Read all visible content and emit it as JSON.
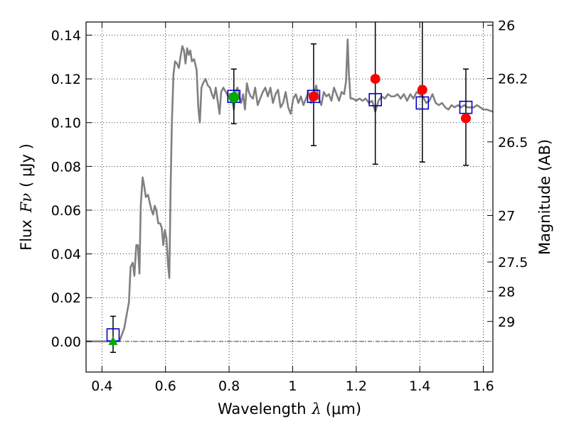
{
  "chart_data": {
    "type": "line",
    "xlabel": {
      "text": "Wavelength",
      "symbol": "λ",
      "unit": "(μm)"
    },
    "ylabel": {
      "text": "Flux",
      "symbol": "Fν",
      "unit": "( μJy )"
    },
    "y2label": "Magnitude (AB)",
    "xlim": [
      0.35,
      1.63
    ],
    "ylim": [
      -0.014,
      0.146
    ],
    "grid": true,
    "x_ticks": [
      {
        "value": 0.4,
        "label": "0.4"
      },
      {
        "value": 0.6,
        "label": "0.6"
      },
      {
        "value": 0.8,
        "label": "0.8"
      },
      {
        "value": 1.0,
        "label": "1"
      },
      {
        "value": 1.2,
        "label": "1.2"
      },
      {
        "value": 1.4,
        "label": "1.4"
      },
      {
        "value": 1.6,
        "label": "1.6"
      }
    ],
    "y_ticks": [
      {
        "value": 0.0,
        "label": "0.00"
      },
      {
        "value": 0.02,
        "label": "0.02"
      },
      {
        "value": 0.04,
        "label": "0.04"
      },
      {
        "value": 0.06,
        "label": "0.06"
      },
      {
        "value": 0.08,
        "label": "0.08"
      },
      {
        "value": 0.1,
        "label": "0.10"
      },
      {
        "value": 0.12,
        "label": "0.12"
      },
      {
        "value": 0.14,
        "label": "0.14"
      }
    ],
    "y2_ticks": [
      {
        "value": 26,
        "label": "26"
      },
      {
        "value": 26.2,
        "label": "26.2"
      },
      {
        "value": 26.5,
        "label": "26.5"
      },
      {
        "value": 27,
        "label": "27"
      },
      {
        "value": 27.5,
        "label": "27.5"
      },
      {
        "value": 28,
        "label": "28"
      },
      {
        "value": 29,
        "label": "29"
      }
    ],
    "zero_line": 0,
    "colors": {
      "spectrum": "#808080",
      "model_box": "#0000cc",
      "observed": "#ff0000",
      "green": "#00aa00",
      "error_bar": "#000000"
    },
    "series": [
      {
        "kind": "spectrum",
        "points": [
          [
            0.35,
            0.0
          ],
          [
            0.43,
            0.0
          ],
          [
            0.455,
            0.0
          ],
          [
            0.47,
            0.006
          ],
          [
            0.485,
            0.018
          ],
          [
            0.49,
            0.034
          ],
          [
            0.497,
            0.036
          ],
          [
            0.502,
            0.03
          ],
          [
            0.508,
            0.044
          ],
          [
            0.513,
            0.044
          ],
          [
            0.518,
            0.031
          ],
          [
            0.522,
            0.062
          ],
          [
            0.528,
            0.075
          ],
          [
            0.533,
            0.071
          ],
          [
            0.538,
            0.066
          ],
          [
            0.545,
            0.067
          ],
          [
            0.551,
            0.063
          ],
          [
            0.556,
            0.06
          ],
          [
            0.561,
            0.058
          ],
          [
            0.566,
            0.062
          ],
          [
            0.571,
            0.06
          ],
          [
            0.577,
            0.054
          ],
          [
            0.583,
            0.054
          ],
          [
            0.588,
            0.052
          ],
          [
            0.593,
            0.044
          ],
          [
            0.598,
            0.051
          ],
          [
            0.603,
            0.047
          ],
          [
            0.608,
            0.035
          ],
          [
            0.612,
            0.029
          ],
          [
            0.616,
            0.07
          ],
          [
            0.62,
            0.1
          ],
          [
            0.625,
            0.122
          ],
          [
            0.63,
            0.128
          ],
          [
            0.636,
            0.127
          ],
          [
            0.642,
            0.125
          ],
          [
            0.647,
            0.13
          ],
          [
            0.653,
            0.135
          ],
          [
            0.658,
            0.133
          ],
          [
            0.663,
            0.127
          ],
          [
            0.668,
            0.134
          ],
          [
            0.673,
            0.131
          ],
          [
            0.678,
            0.133
          ],
          [
            0.683,
            0.128
          ],
          [
            0.69,
            0.129
          ],
          [
            0.698,
            0.124
          ],
          [
            0.703,
            0.107
          ],
          [
            0.708,
            0.1
          ],
          [
            0.713,
            0.116
          ],
          [
            0.718,
            0.118
          ],
          [
            0.726,
            0.12
          ],
          [
            0.733,
            0.117
          ],
          [
            0.74,
            0.116
          ],
          [
            0.746,
            0.113
          ],
          [
            0.752,
            0.111
          ],
          [
            0.758,
            0.116
          ],
          [
            0.764,
            0.11
          ],
          [
            0.77,
            0.104
          ],
          [
            0.775,
            0.114
          ],
          [
            0.782,
            0.116
          ],
          [
            0.79,
            0.114
          ],
          [
            0.797,
            0.112
          ],
          [
            0.804,
            0.113
          ],
          [
            0.81,
            0.11
          ],
          [
            0.815,
            0.106
          ],
          [
            0.82,
            0.114
          ],
          [
            0.826,
            0.116
          ],
          [
            0.832,
            0.112
          ],
          [
            0.838,
            0.109
          ],
          [
            0.844,
            0.113
          ],
          [
            0.85,
            0.106
          ],
          [
            0.856,
            0.118
          ],
          [
            0.862,
            0.114
          ],
          [
            0.868,
            0.112
          ],
          [
            0.875,
            0.111
          ],
          [
            0.882,
            0.116
          ],
          [
            0.89,
            0.108
          ],
          [
            0.898,
            0.111
          ],
          [
            0.906,
            0.114
          ],
          [
            0.914,
            0.116
          ],
          [
            0.922,
            0.112
          ],
          [
            0.93,
            0.116
          ],
          [
            0.938,
            0.109
          ],
          [
            0.946,
            0.113
          ],
          [
            0.954,
            0.115
          ],
          [
            0.962,
            0.107
          ],
          [
            0.97,
            0.109
          ],
          [
            0.978,
            0.114
          ],
          [
            0.986,
            0.107
          ],
          [
            0.994,
            0.104
          ],
          [
            1.002,
            0.111
          ],
          [
            1.01,
            0.113
          ],
          [
            1.018,
            0.109
          ],
          [
            1.026,
            0.112
          ],
          [
            1.034,
            0.108
          ],
          [
            1.042,
            0.111
          ],
          [
            1.05,
            0.114
          ],
          [
            1.058,
            0.109
          ],
          [
            1.066,
            0.112
          ],
          [
            1.074,
            0.117
          ],
          [
            1.082,
            0.111
          ],
          [
            1.09,
            0.108
          ],
          [
            1.098,
            0.114
          ],
          [
            1.106,
            0.112
          ],
          [
            1.114,
            0.113
          ],
          [
            1.122,
            0.11
          ],
          [
            1.13,
            0.116
          ],
          [
            1.138,
            0.113
          ],
          [
            1.146,
            0.11
          ],
          [
            1.154,
            0.114
          ],
          [
            1.162,
            0.113
          ],
          [
            1.168,
            0.119
          ],
          [
            1.173,
            0.138
          ],
          [
            1.177,
            0.122
          ],
          [
            1.182,
            0.111
          ],
          [
            1.19,
            0.111
          ],
          [
            1.2,
            0.11
          ],
          [
            1.21,
            0.111
          ],
          [
            1.22,
            0.11
          ],
          [
            1.23,
            0.111
          ],
          [
            1.24,
            0.109
          ],
          [
            1.25,
            0.11
          ],
          [
            1.26,
            0.105
          ],
          [
            1.27,
            0.11
          ],
          [
            1.28,
            0.112
          ],
          [
            1.29,
            0.111
          ],
          [
            1.3,
            0.113
          ],
          [
            1.31,
            0.112
          ],
          [
            1.32,
            0.112
          ],
          [
            1.33,
            0.113
          ],
          [
            1.34,
            0.111
          ],
          [
            1.35,
            0.113
          ],
          [
            1.36,
            0.11
          ],
          [
            1.37,
            0.113
          ],
          [
            1.38,
            0.111
          ],
          [
            1.39,
            0.114
          ],
          [
            1.4,
            0.113
          ],
          [
            1.41,
            0.112
          ],
          [
            1.42,
            0.109
          ],
          [
            1.43,
            0.11
          ],
          [
            1.44,
            0.113
          ],
          [
            1.45,
            0.109
          ],
          [
            1.46,
            0.108
          ],
          [
            1.47,
            0.109
          ],
          [
            1.48,
            0.107
          ],
          [
            1.49,
            0.106
          ],
          [
            1.5,
            0.108
          ],
          [
            1.51,
            0.107
          ],
          [
            1.52,
            0.108
          ],
          [
            1.53,
            0.107
          ],
          [
            1.54,
            0.108
          ],
          [
            1.55,
            0.107
          ],
          [
            1.56,
            0.107
          ],
          [
            1.57,
            0.107
          ],
          [
            1.58,
            0.108
          ],
          [
            1.59,
            0.107
          ],
          [
            1.6,
            0.106
          ],
          [
            1.61,
            0.106
          ],
          [
            1.63,
            0.105
          ]
        ]
      },
      {
        "kind": "model_box",
        "points": [
          {
            "x": 0.435,
            "y": 0.003,
            "yerr_low": -0.005,
            "yerr_high": 0.0115
          },
          {
            "x": 0.815,
            "y": 0.112,
            "yerr_low": 0.0995,
            "yerr_high": 0.1245
          },
          {
            "x": 1.066,
            "y": 0.112,
            "yerr_low": 0.0895,
            "yerr_high": 0.136
          },
          {
            "x": 1.26,
            "y": 0.1105,
            "yerr_low": 0.081,
            "yerr_high": 0.146
          },
          {
            "x": 1.408,
            "y": 0.109,
            "yerr_low": 0.082,
            "yerr_high": 0.146
          },
          {
            "x": 1.545,
            "y": 0.107,
            "yerr_low": 0.0805,
            "yerr_high": 0.1245
          }
        ]
      },
      {
        "kind": "observed",
        "points": [
          {
            "x": 1.066,
            "y": 0.112
          },
          {
            "x": 1.26,
            "y": 0.12
          },
          {
            "x": 1.408,
            "y": 0.115
          },
          {
            "x": 1.545,
            "y": 0.102
          }
        ]
      },
      {
        "kind": "green_circle",
        "points": [
          {
            "x": 0.815,
            "y": 0.1115
          }
        ]
      },
      {
        "kind": "green_triangle",
        "points": [
          {
            "x": 0.435,
            "y": 0.0
          }
        ]
      }
    ]
  }
}
